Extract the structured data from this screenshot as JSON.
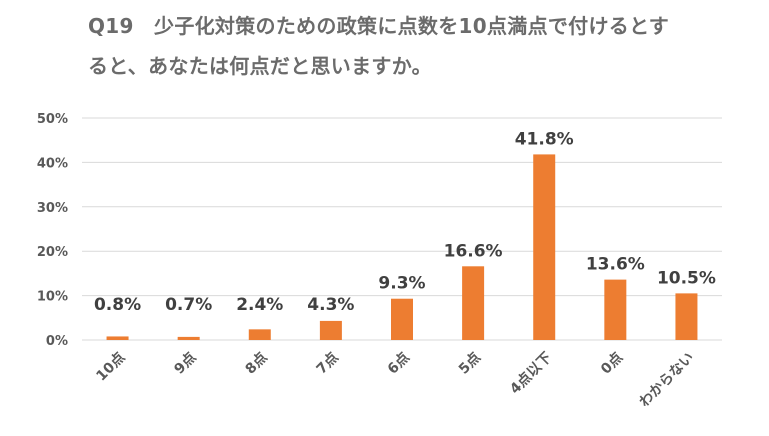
{
  "title": {
    "line1": "Q19　少子化対策のための政策に点数を10点満点で付けるとす",
    "line2": "ると、あなたは何点だと思いますか。"
  },
  "chart_data": {
    "type": "bar",
    "categories": [
      "10点",
      "9点",
      "8点",
      "7点",
      "6点",
      "5点",
      "4点以下",
      "0点",
      "わからない"
    ],
    "values": [
      0.8,
      0.7,
      2.4,
      4.3,
      9.3,
      16.6,
      41.8,
      13.6,
      10.5
    ],
    "data_labels": [
      "0.8%",
      "0.7%",
      "2.4%",
      "4.3%",
      "9.3%",
      "16.6%",
      "41.8%",
      "13.6%",
      "10.5%"
    ],
    "y_ticks": [
      0,
      10,
      20,
      30,
      40,
      50
    ],
    "y_tick_labels": [
      "0%",
      "10%",
      "20%",
      "30%",
      "40%",
      "50%"
    ],
    "ylim": [
      0,
      50
    ],
    "grid": true,
    "legend": "none",
    "colors": {
      "bar": "#ED7D31",
      "grid": "#D9D9D9",
      "text": "#595959"
    }
  }
}
